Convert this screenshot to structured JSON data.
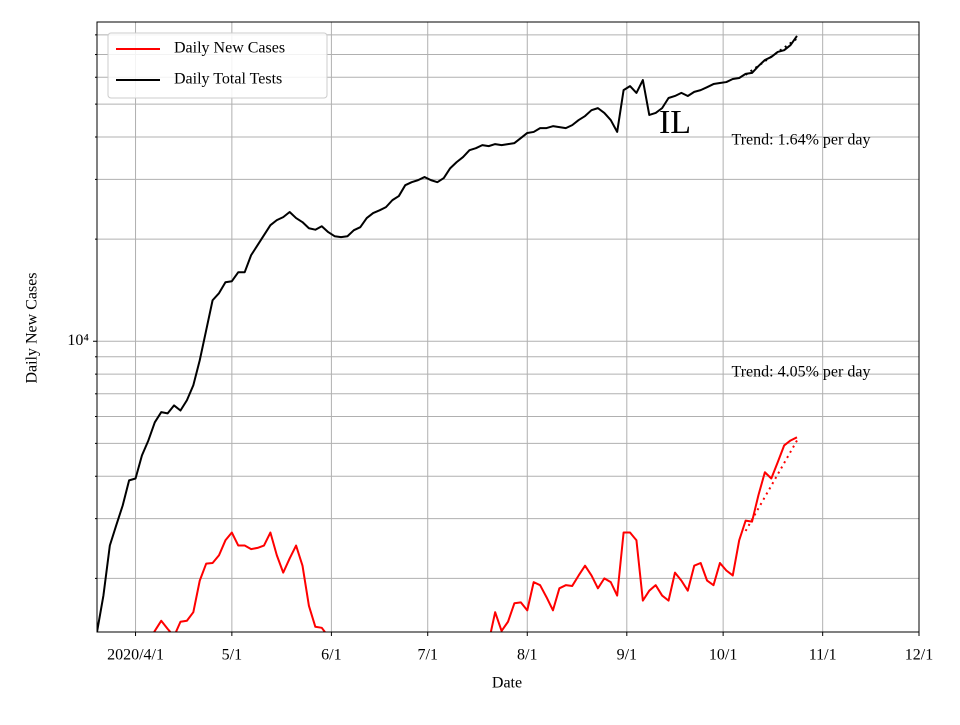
{
  "chart_data": {
    "type": "line",
    "title": "IL",
    "xlabel": "Date",
    "ylabel": "Daily New Cases",
    "log_y": true,
    "grid": true,
    "legend": "upper left",
    "xlim": [
      "2020-03-20",
      "2020-12-01"
    ],
    "xticks": [
      {
        "value": "2020-04-01",
        "label": "2020/4/1"
      },
      {
        "value": "2020-05-01",
        "label": "5/1"
      },
      {
        "value": "2020-06-01",
        "label": "6/1"
      },
      {
        "value": "2020-07-01",
        "label": "7/1"
      },
      {
        "value": "2020-08-01",
        "label": "8/1"
      },
      {
        "value": "2020-09-01",
        "label": "9/1"
      },
      {
        "value": "2020-10-01",
        "label": "10/1"
      },
      {
        "value": "2020-11-01",
        "label": "11/1"
      },
      {
        "value": "2020-12-01",
        "label": "12/1"
      }
    ],
    "ylim": [
      1390,
      87300
    ],
    "yticks": [
      {
        "value": 10000,
        "label": "10⁴"
      }
    ],
    "yminorticks": [
      2000,
      3000,
      4000,
      5000,
      6000,
      7000,
      8000,
      9000,
      20000,
      30000,
      40000,
      50000,
      60000,
      70000,
      80000
    ],
    "annotations": [
      "Trend: 1.64% per day",
      "Trend: 4.05% per day"
    ],
    "x": [
      "2020-03-20",
      "2020-03-22",
      "2020-03-24",
      "2020-03-26",
      "2020-03-28",
      "2020-03-30",
      "2020-04-01",
      "2020-04-03",
      "2020-04-05",
      "2020-04-07",
      "2020-04-09",
      "2020-04-11",
      "2020-04-13",
      "2020-04-15",
      "2020-04-17",
      "2020-04-19",
      "2020-04-21",
      "2020-04-23",
      "2020-04-25",
      "2020-04-27",
      "2020-04-29",
      "2020-05-01",
      "2020-05-03",
      "2020-05-05",
      "2020-05-07",
      "2020-05-09",
      "2020-05-11",
      "2020-05-13",
      "2020-05-15",
      "2020-05-17",
      "2020-05-19",
      "2020-05-21",
      "2020-05-23",
      "2020-05-25",
      "2020-05-27",
      "2020-05-29",
      "2020-05-31",
      "2020-06-02",
      "2020-06-04",
      "2020-06-06",
      "2020-06-08",
      "2020-06-10",
      "2020-06-12",
      "2020-06-14",
      "2020-06-16",
      "2020-06-18",
      "2020-06-20",
      "2020-06-22",
      "2020-06-24",
      "2020-06-26",
      "2020-06-28",
      "2020-06-30",
      "2020-07-02",
      "2020-07-04",
      "2020-07-06",
      "2020-07-08",
      "2020-07-10",
      "2020-07-12",
      "2020-07-14",
      "2020-07-16",
      "2020-07-18",
      "2020-07-20",
      "2020-07-22",
      "2020-07-24",
      "2020-07-26",
      "2020-07-28",
      "2020-07-30",
      "2020-08-01",
      "2020-08-03",
      "2020-08-05",
      "2020-08-07",
      "2020-08-09",
      "2020-08-11",
      "2020-08-13",
      "2020-08-15",
      "2020-08-17",
      "2020-08-19",
      "2020-08-21",
      "2020-08-23",
      "2020-08-25",
      "2020-08-27",
      "2020-08-29",
      "2020-08-31",
      "2020-09-02",
      "2020-09-04",
      "2020-09-06",
      "2020-09-08",
      "2020-09-10",
      "2020-09-12",
      "2020-09-14",
      "2020-09-16",
      "2020-09-18",
      "2020-09-20",
      "2020-09-22",
      "2020-09-24",
      "2020-09-26",
      "2020-09-28",
      "2020-09-30",
      "2020-10-02",
      "2020-10-04",
      "2020-10-06",
      "2020-10-08",
      "2020-10-10",
      "2020-10-12",
      "2020-10-14",
      "2020-10-16",
      "2020-10-18",
      "2020-10-20",
      "2020-10-22",
      "2020-10-24"
    ],
    "series": [
      {
        "name": "Daily New Cases",
        "color": "#ff0000",
        "values": [
          null,
          null,
          null,
          null,
          null,
          null,
          null,
          null,
          1300,
          1400,
          1500,
          1420,
          1350,
          1490,
          1500,
          1590,
          1970,
          2210,
          2220,
          2340,
          2590,
          2730,
          2500,
          2500,
          2440,
          2460,
          2500,
          2730,
          2340,
          2080,
          2290,
          2500,
          2180,
          1660,
          1440,
          1430,
          1350,
          1300,
          null,
          null,
          null,
          null,
          null,
          null,
          null,
          null,
          null,
          null,
          null,
          null,
          null,
          null,
          null,
          null,
          null,
          null,
          null,
          null,
          null,
          null,
          null,
          1300,
          1590,
          1400,
          1490,
          1690,
          1700,
          1610,
          1950,
          1910,
          1760,
          1610,
          1870,
          1910,
          1900,
          2040,
          2180,
          2040,
          1870,
          2000,
          1950,
          1780,
          2730,
          2730,
          2590,
          1720,
          1840,
          1910,
          1780,
          1720,
          2080,
          1970,
          1840,
          2180,
          2220,
          1970,
          1910,
          2220,
          2110,
          2040,
          2590,
          2960,
          2940,
          3520,
          4110,
          3940,
          4400,
          4930,
          5100,
          5210
        ]
      },
      {
        "name": "Daily Total Tests",
        "color": "#000000",
        "values": [
          1390,
          1780,
          2500,
          2870,
          3280,
          3890,
          3940,
          4610,
          5100,
          5770,
          6180,
          6130,
          6470,
          6250,
          6700,
          7420,
          8790,
          10770,
          13210,
          13860,
          14930,
          15030,
          15980,
          15980,
          17940,
          19190,
          20540,
          21990,
          22750,
          23220,
          24040,
          23070,
          22440,
          21530,
          21320,
          21830,
          20980,
          20400,
          20280,
          20400,
          21250,
          21690,
          23070,
          23870,
          24320,
          24850,
          26060,
          26790,
          28840,
          29440,
          29850,
          30480,
          29850,
          29440,
          30270,
          32360,
          33730,
          34910,
          36580,
          37080,
          37860,
          37600,
          38120,
          37860,
          38120,
          38380,
          39720,
          41110,
          41400,
          42490,
          42490,
          43050,
          42770,
          42490,
          43350,
          44870,
          46110,
          47980,
          48660,
          47100,
          44870,
          41400,
          54980,
          56500,
          53950,
          58880,
          46450,
          47100,
          48660,
          52120,
          52840,
          53950,
          52840,
          54330,
          54980,
          56100,
          57300,
          57690,
          58070,
          59290,
          59700,
          61380,
          61800,
          64730,
          67450,
          68860,
          71260,
          72110,
          74650,
          79430
        ]
      }
    ],
    "trends": [
      {
        "color": "#ff0000",
        "x": [
          "2020-10-08",
          "2020-10-24"
        ],
        "values": [
          2760,
          5100
        ]
      },
      {
        "color": "#000000",
        "x": [
          "2020-10-08",
          "2020-10-24"
        ],
        "values": [
          61000,
          78000
        ]
      }
    ]
  }
}
